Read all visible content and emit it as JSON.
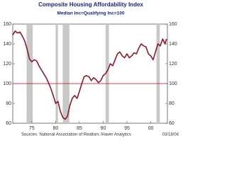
{
  "chart_data": {
    "type": "line",
    "title": "Composite Housing Affordability Index",
    "subtitle": "Median Inc=Qualifying Inc=100",
    "source": "Sources: National Association of Realtors /Haver Analytics",
    "date_stamp": "03/18/04",
    "x": [
      1971,
      1971.5,
      1972,
      1972.5,
      1973,
      1973.5,
      1974,
      1974.5,
      1975,
      1975.5,
      1976,
      1976.5,
      1977,
      1977.5,
      1978,
      1978.5,
      1979,
      1979.5,
      1980,
      1980.5,
      1981,
      1981.5,
      1982,
      1982.5,
      1983,
      1983.5,
      1984,
      1984.5,
      1985,
      1985.5,
      1986,
      1986.5,
      1987,
      1987.5,
      1988,
      1988.5,
      1989,
      1989.5,
      1990,
      1990.5,
      1991,
      1991.5,
      1992,
      1992.5,
      1993,
      1993.5,
      1994,
      1994.5,
      1995,
      1995.5,
      1996,
      1996.5,
      1997,
      1997.5,
      1998,
      1998.5,
      1999,
      1999.5,
      2000,
      2000.5,
      2001,
      2001.5,
      2002,
      2002.5,
      2003,
      2003.3
    ],
    "series": [
      {
        "color": "#8b1a2b",
        "values": [
          149,
          153,
          151,
          152,
          148,
          143,
          135,
          125,
          122,
          124,
          123,
          118,
          114,
          110,
          106,
          101,
          95,
          88,
          80,
          82,
          72,
          66,
          64,
          67,
          78,
          85,
          88,
          85,
          92,
          100,
          107,
          108,
          107,
          103,
          106,
          104,
          101,
          103,
          108,
          110,
          114,
          120,
          118,
          124,
          130,
          132,
          128,
          126,
          130,
          126,
          128,
          131,
          130,
          136,
          140,
          138,
          137,
          130,
          128,
          124,
          132,
          140,
          138,
          145,
          140,
          145
        ]
      }
    ],
    "shaded_periods": [
      [
        1973.9,
        1975.2
      ],
      [
        1980.0,
        1980.5
      ],
      [
        1981.5,
        1982.9
      ],
      [
        1990.5,
        1991.2
      ],
      [
        2001.2,
        2001.9
      ]
    ],
    "shade_color": "#c8c8c8",
    "reference_line": 100,
    "reference_color": "#c0001a",
    "xlim": [
      1971,
      2003.5
    ],
    "xticks": [
      {
        "value": 1975,
        "label": "75"
      },
      {
        "value": 1980,
        "label": "80"
      },
      {
        "value": 1985,
        "label": "85"
      },
      {
        "value": 1990,
        "label": "90"
      },
      {
        "value": 1995,
        "label": "95"
      },
      {
        "value": 2000,
        "label": "00"
      }
    ],
    "ylim": [
      60,
      160
    ],
    "yticks": [
      60,
      80,
      100,
      120,
      140,
      160
    ],
    "y2lim": [
      60,
      160
    ],
    "y2ticks": [
      60,
      80,
      100,
      120,
      140,
      160
    ]
  }
}
